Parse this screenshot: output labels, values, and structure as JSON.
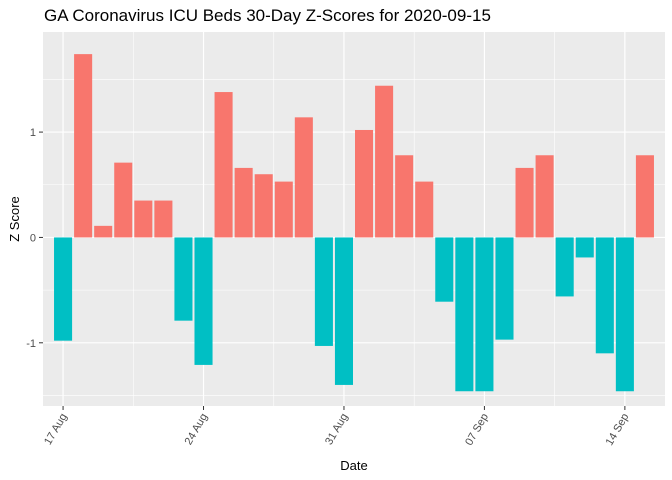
{
  "chart_data": {
    "type": "bar",
    "title": "GA Coronavirus ICU Beds 30-Day Z-Scores for 2020-09-15",
    "xlabel": "Date",
    "ylabel": "Z Score",
    "x_start_date": "2020-08-17",
    "x_tick_labels": [
      "17 Aug",
      "24 Aug",
      "31 Aug",
      "07 Sep",
      "14 Sep"
    ],
    "y_tick_labels": [
      "-1",
      "0",
      "1"
    ],
    "ylim": [
      -1.6,
      1.95
    ],
    "colors": {
      "positive": "#F8766D",
      "negative": "#00BFC4",
      "panel": "#EBEBEB",
      "grid": "#FFFFFF"
    },
    "values": [
      -0.98,
      1.74,
      0.11,
      0.71,
      0.35,
      0.35,
      -0.79,
      -1.21,
      1.38,
      0.66,
      0.6,
      0.53,
      1.14,
      -1.03,
      -1.4,
      1.02,
      1.44,
      0.78,
      0.53,
      -0.61,
      -1.46,
      -1.46,
      -0.97,
      0.66,
      0.78,
      -0.56,
      -0.19,
      -1.1,
      -1.46,
      0.78
    ]
  }
}
